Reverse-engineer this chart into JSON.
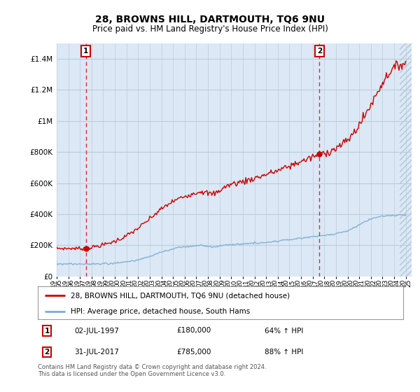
{
  "title": "28, BROWNS HILL, DARTMOUTH, TQ6 9NU",
  "subtitle": "Price paid vs. HM Land Registry's House Price Index (HPI)",
  "legend_label_red": "28, BROWNS HILL, DARTMOUTH, TQ6 9NU (detached house)",
  "legend_label_blue": "HPI: Average price, detached house, South Hams",
  "sale1_date": "02-JUL-1997",
  "sale1_price": 180000,
  "sale1_pct": "64% ↑ HPI",
  "sale1_year": 1997.5,
  "sale2_date": "31-JUL-2017",
  "sale2_price": 785000,
  "sale2_pct": "88% ↑ HPI",
  "sale2_year": 2017.58,
  "footer": "Contains HM Land Registry data © Crown copyright and database right 2024.\nThis data is licensed under the Open Government Licence v3.0.",
  "red_color": "#cc0000",
  "blue_color": "#7aadd4",
  "bg_color": "#dce8f5",
  "grid_color": "#c8d8e8",
  "ylim": [
    0,
    1500000
  ],
  "xlim_start": 1995.0,
  "xlim_end": 2025.5
}
